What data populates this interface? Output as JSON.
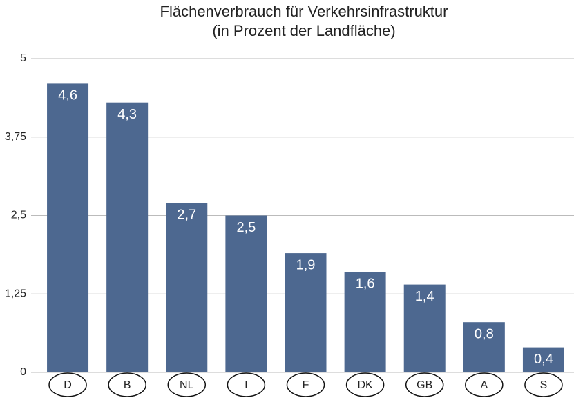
{
  "chart_data": {
    "type": "bar",
    "title": "Flächenverbrauch für Verkehrsinfrastruktur",
    "subtitle": "(in Prozent der Landfläche)",
    "categories": [
      "D",
      "B",
      "NL",
      "I",
      "F",
      "DK",
      "GB",
      "A",
      "S"
    ],
    "values": [
      4.6,
      4.3,
      2.7,
      2.5,
      1.9,
      1.6,
      1.4,
      0.8,
      0.4
    ],
    "value_labels": [
      "4,6",
      "4,3",
      "2,7",
      "2,5",
      "1,9",
      "1,6",
      "1,4",
      "0,8",
      "0,4"
    ],
    "color": "#4d6890",
    "ylim": [
      0,
      5
    ],
    "yticks": [
      0,
      {
        "value": 1.25,
        "label": "1,25"
      },
      {
        "value": 2.5,
        "label": "2,5"
      },
      {
        "value": 3.75,
        "label": "3,75"
      },
      5
    ],
    "grid": true
  }
}
